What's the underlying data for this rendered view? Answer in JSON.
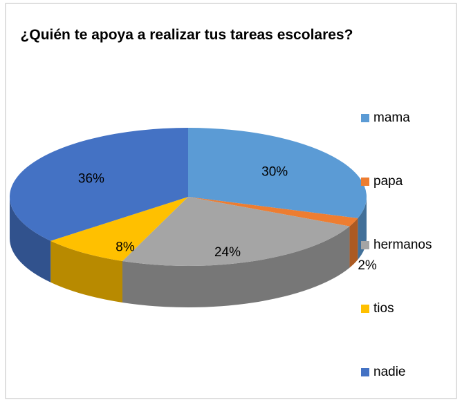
{
  "chart_data": {
    "type": "pie",
    "title": "¿Quién te apoya a realizar tus tareas escolares?",
    "categories": [
      "mama",
      "papa",
      "hermanos",
      "tios",
      "nadie"
    ],
    "values": [
      30,
      2,
      24,
      8,
      36
    ],
    "value_labels": [
      "30%",
      "2%",
      "24%",
      "8%",
      "36%"
    ],
    "colors": [
      "#5b9bd5",
      "#ed7d31",
      "#a5a5a5",
      "#ffc000",
      "#4472c4"
    ],
    "legend": "right"
  }
}
